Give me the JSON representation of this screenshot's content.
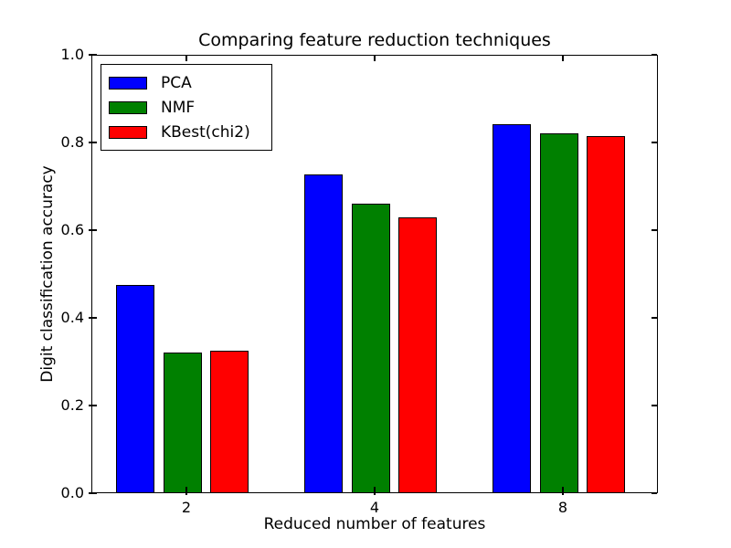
{
  "chart_data": {
    "type": "bar",
    "title": "Comparing feature reduction techniques",
    "xlabel": "Reduced number of features",
    "ylabel": "Digit classification accuracy",
    "categories": [
      "2",
      "4",
      "8"
    ],
    "series": [
      {
        "name": "PCA",
        "color": "#0000ff",
        "values": [
          0.475,
          0.728,
          0.842
        ]
      },
      {
        "name": "NMF",
        "color": "#008000",
        "values": [
          0.32,
          0.66,
          0.821
        ]
      },
      {
        "name": "KBest(chi2)",
        "color": "#ff0000",
        "values": [
          0.325,
          0.63,
          0.815
        ]
      }
    ],
    "ylim": [
      0.0,
      1.0
    ],
    "yticks": [
      "0.0",
      "0.2",
      "0.4",
      "0.6",
      "0.8",
      "1.0"
    ],
    "grid": false,
    "legend_position": "upper left",
    "bar_edge_color": "#000000",
    "background": "#ffffff"
  }
}
